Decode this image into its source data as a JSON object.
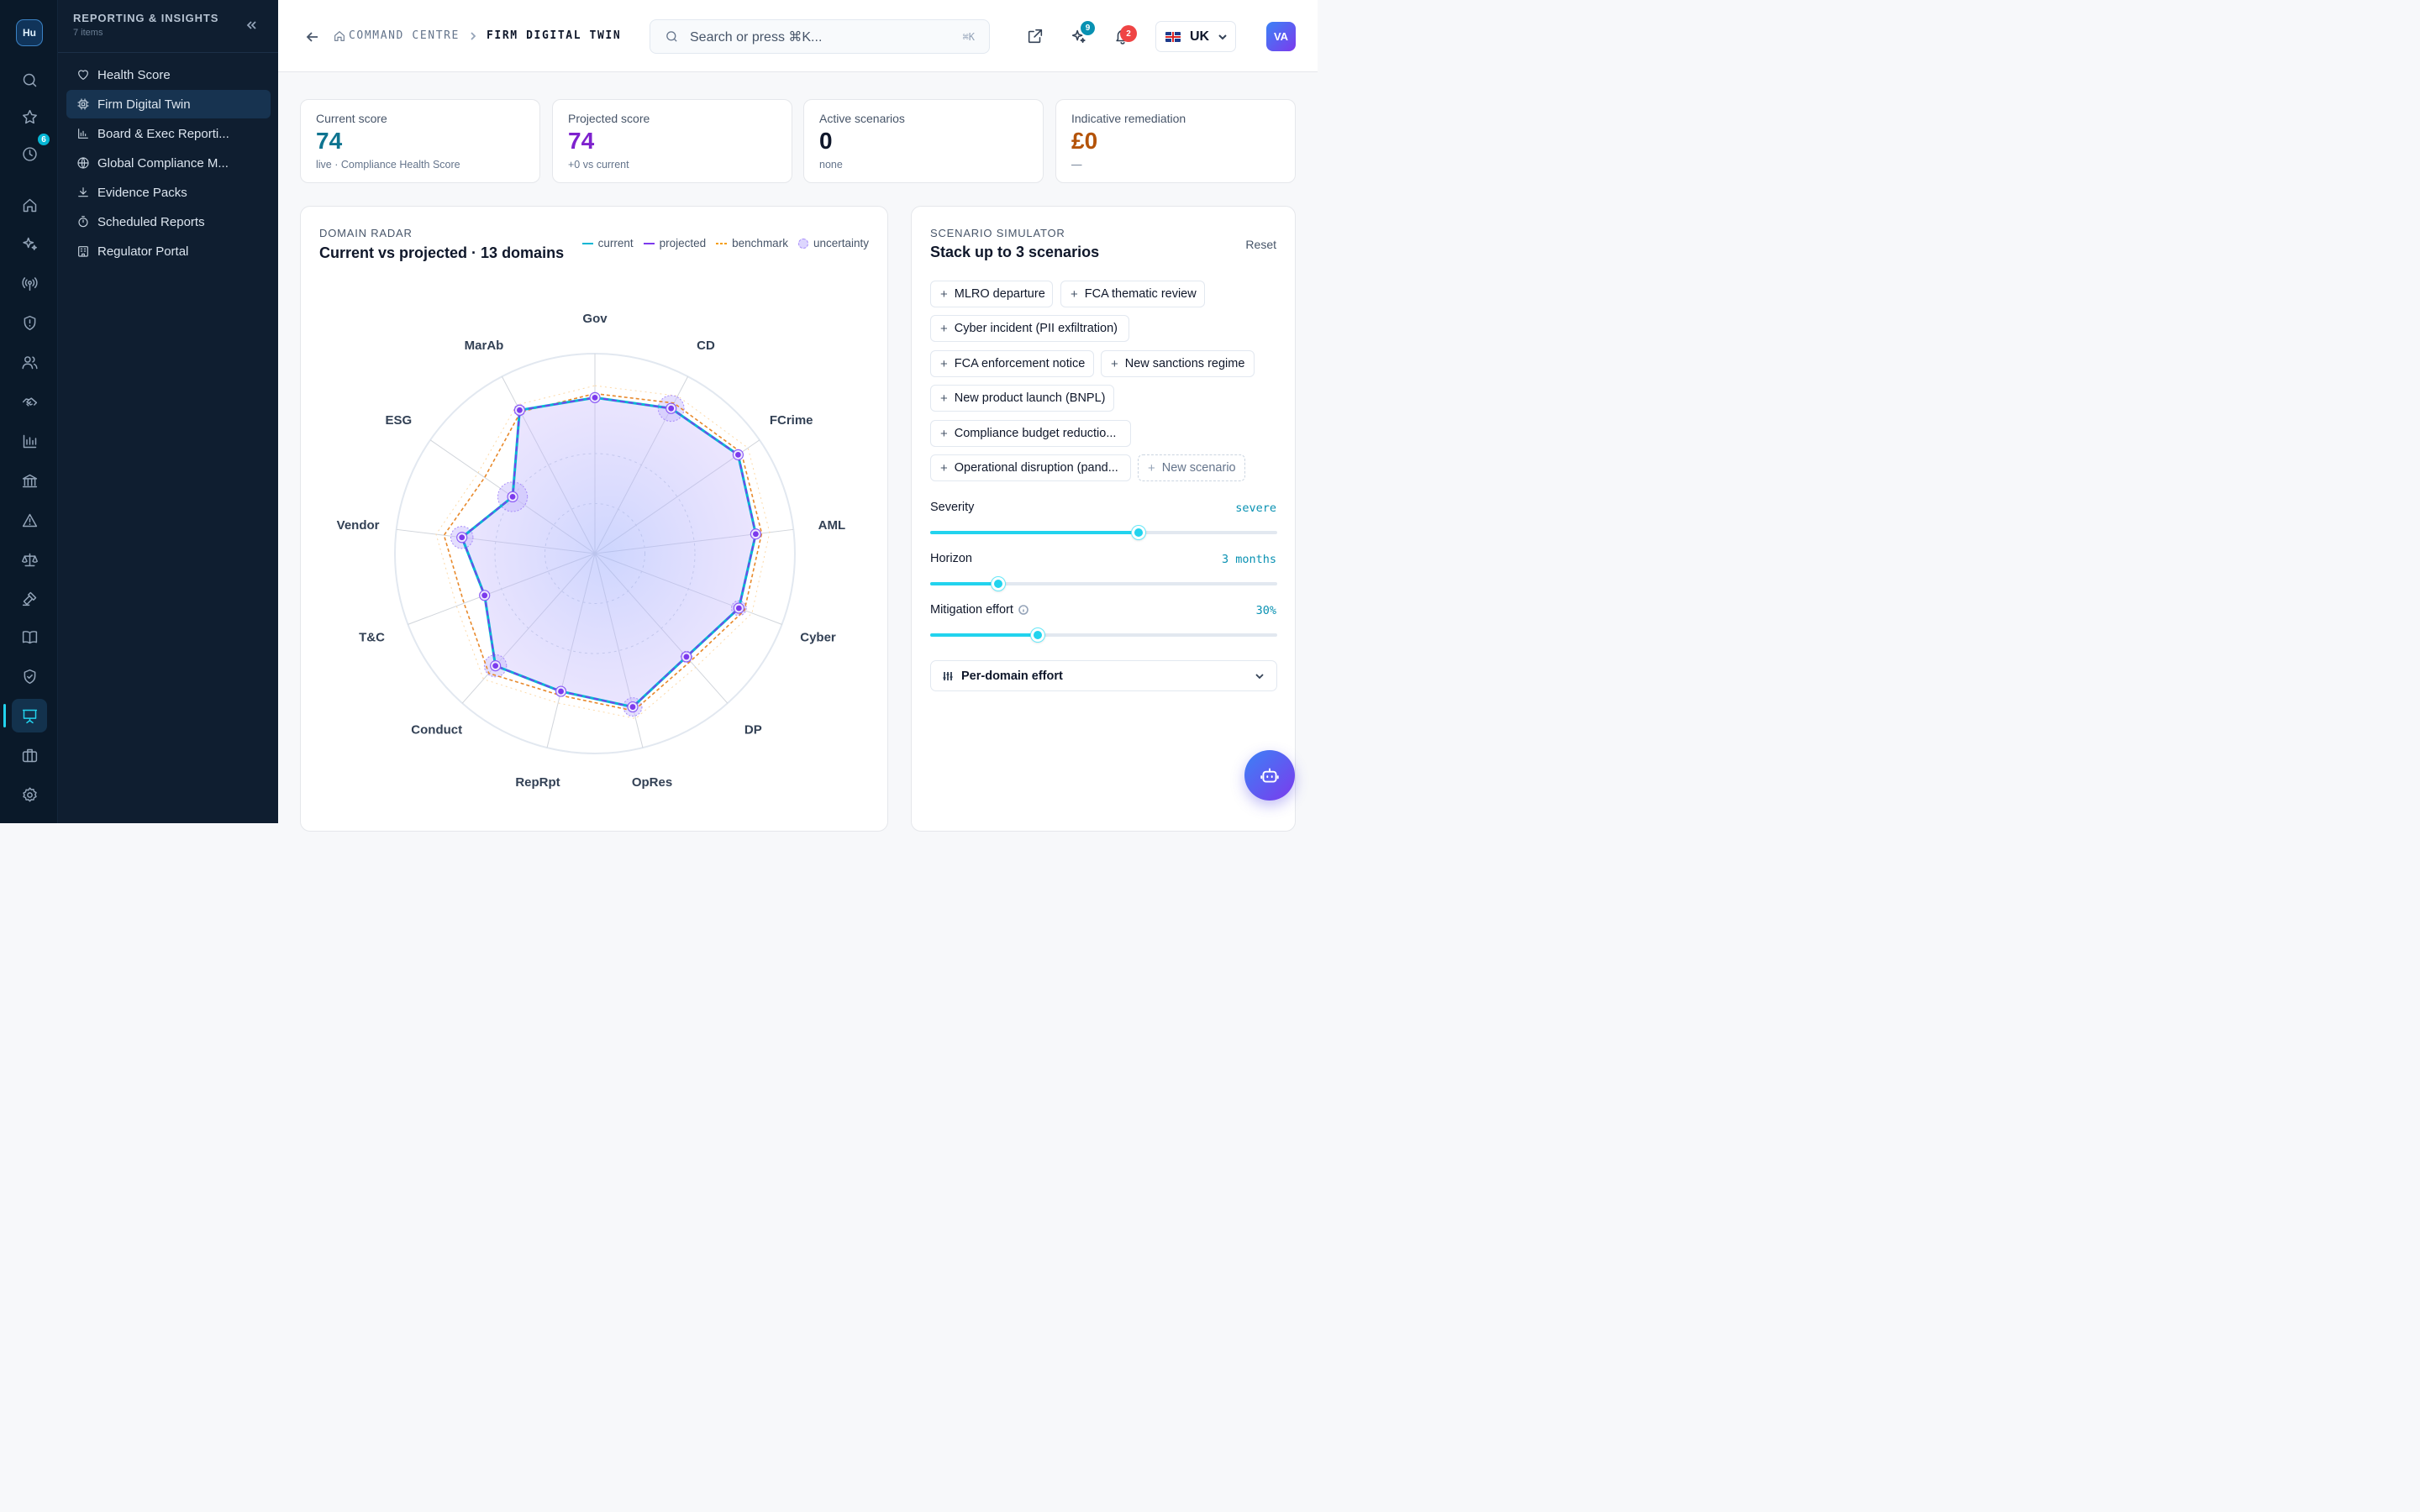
{
  "app": {
    "logo_text": "Hu"
  },
  "rail": {
    "history_badge": "6",
    "icons": [
      "search-icon",
      "star-icon",
      "clock-icon",
      "home-icon",
      "sparkles-icon",
      "radar-icon",
      "shield-alert-icon",
      "users-icon",
      "handshake-icon",
      "chart-icon",
      "bank-icon",
      "warning-icon",
      "scale-icon",
      "gavel-icon",
      "book-icon",
      "shield-check-icon",
      "presentation-icon",
      "briefcase-icon",
      "settings-icon"
    ]
  },
  "sidebar": {
    "title": "REPORTING & INSIGHTS",
    "count": "7 items",
    "items": [
      {
        "label": "Health Score",
        "icon": "heart-icon"
      },
      {
        "label": "Firm Digital Twin",
        "icon": "cpu-icon"
      },
      {
        "label": "Board & Exec Reporti...",
        "icon": "bar-chart-icon"
      },
      {
        "label": "Global Compliance M...",
        "icon": "globe-icon"
      },
      {
        "label": "Evidence Packs",
        "icon": "download-icon"
      },
      {
        "label": "Scheduled Reports",
        "icon": "timer-icon"
      },
      {
        "label": "Regulator Portal",
        "icon": "building-icon"
      }
    ]
  },
  "header": {
    "breadcrumb_root": "COMMAND CENTRE",
    "breadcrumb_current": "FIRM DIGITAL TWIN",
    "search_placeholder": "Search or press ⌘K...",
    "search_kbd": "⌘K",
    "ai_badge": "9",
    "notif_badge": "2",
    "region": "UK",
    "avatar": "VA"
  },
  "kpis": [
    {
      "label": "Current score",
      "value": "74",
      "sub": "live · Compliance Health Score",
      "color": "#0e7490"
    },
    {
      "label": "Projected score",
      "value": "74",
      "sub": "+0 vs current",
      "color": "#7e22ce"
    },
    {
      "label": "Active scenarios",
      "value": "0",
      "sub": "none",
      "color": "#0f172a"
    },
    {
      "label": "Indicative remediation",
      "value": "£0",
      "sub": "—",
      "color": "#b45309"
    }
  ],
  "radar": {
    "eyebrow": "DOMAIN RADAR",
    "title": "Current vs projected · 13 domains",
    "legend": {
      "current": "current",
      "projected": "projected",
      "benchmark": "benchmark",
      "uncertainty": "uncertainty"
    },
    "colors": {
      "current": "#06b6d4",
      "projected": "#7c3aed",
      "benchmark": "#f59e0b"
    }
  },
  "chart_data": {
    "type": "radar",
    "categories": [
      "Gov",
      "CD",
      "FCrime",
      "AML",
      "Cyber",
      "DP",
      "OpRes",
      "RepRpt",
      "Conduct",
      "T&C",
      "Vendor",
      "ESG",
      "MarAb"
    ],
    "rmax": 100,
    "series": [
      {
        "name": "current",
        "values": [
          78,
          82,
          87,
          81,
          77,
          69,
          79,
          71,
          75,
          59,
          67,
          50,
          81
        ]
      },
      {
        "name": "projected",
        "values": [
          78,
          82,
          87,
          81,
          77,
          69,
          79,
          71,
          75,
          59,
          67,
          50,
          81
        ]
      },
      {
        "name": "benchmark",
        "values": [
          80,
          85,
          89,
          84,
          80,
          72,
          81,
          73,
          80,
          70,
          76,
          67,
          80
        ]
      }
    ],
    "uncertainty": [
      0,
      7,
      2,
      1,
      4,
      3,
      5,
      2,
      6,
      2,
      6,
      8,
      3
    ]
  },
  "simulator": {
    "eyebrow": "SCENARIO SIMULATOR",
    "title": "Stack up to 3 scenarios",
    "reset": "Reset",
    "scenarios": [
      "MLRO departure",
      "FCA thematic review",
      "Cyber incident (PII exfiltration)",
      "FCA enforcement notice",
      "New sanctions regime",
      "New product launch (BNPL)",
      "Compliance budget reductio...",
      "Operational disruption (pand..."
    ],
    "new_scenario": "New scenario",
    "sliders": [
      {
        "label": "Severity",
        "value": "severe",
        "level": 0.6
      },
      {
        "label": "Horizon",
        "value": "3 months",
        "level": 0.195
      },
      {
        "label": "Mitigation effort",
        "value": "30%",
        "level": 0.31
      }
    ],
    "per_domain": "Per-domain effort"
  }
}
